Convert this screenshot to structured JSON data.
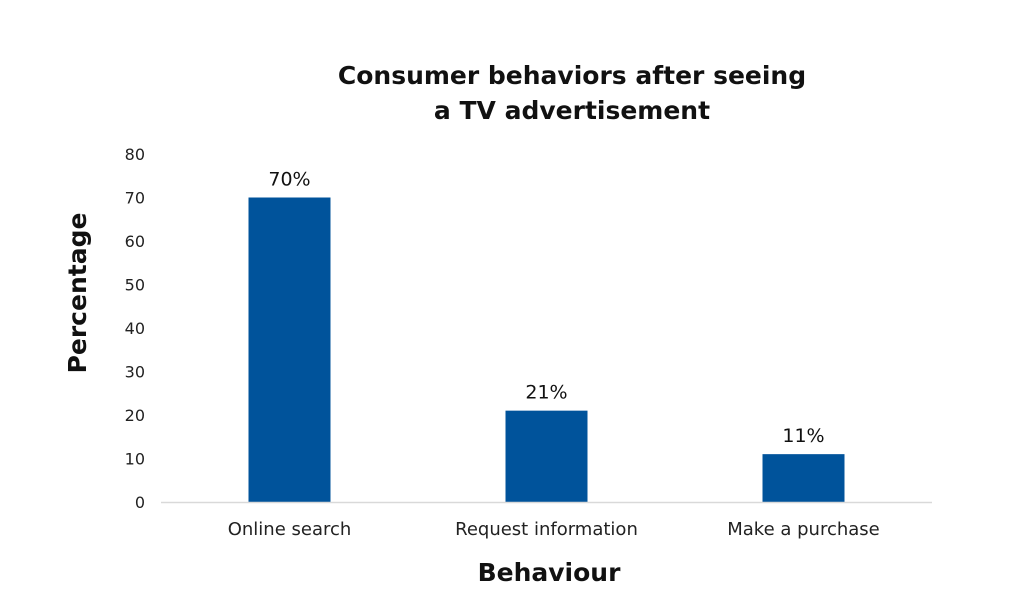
{
  "chart_data": {
    "type": "bar",
    "title": [
      "Consumer behaviors after seeing",
      "a TV advertisement"
    ],
    "xlabel": "Behaviour",
    "ylabel": "Percentage",
    "categories": [
      "Online search",
      "Request information",
      "Make a purchase"
    ],
    "values": [
      70,
      21,
      11
    ],
    "data_labels": [
      "70%",
      "21%",
      "11%"
    ],
    "ylim": [
      0,
      80
    ],
    "yticks": [
      0,
      10,
      20,
      30,
      40,
      50,
      60,
      70,
      80
    ],
    "grid": false,
    "legend": "none",
    "bar_color": "#00539B",
    "axis_color": "#D9D9D9"
  }
}
